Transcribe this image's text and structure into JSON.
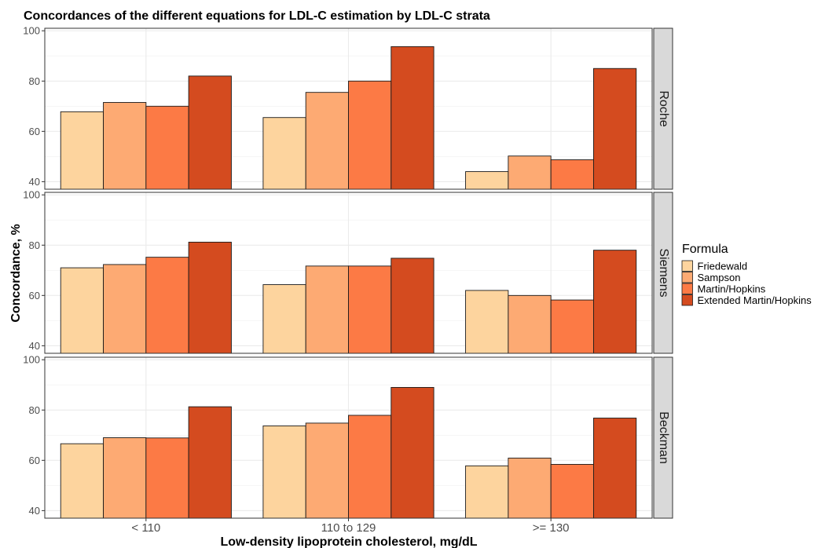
{
  "chart_data": {
    "type": "bar",
    "title": "Concordances of the different equations for LDL-C estimation by LDL-C strata",
    "xlabel": "Low-density lipoprotein cholesterol, mg/dL",
    "ylabel": "Concordance, %",
    "ylim": [
      37,
      101
    ],
    "yticks": [
      40,
      60,
      80,
      100
    ],
    "grid": true,
    "legend_position": "right",
    "legend_title": "Formula",
    "categories": [
      "< 110",
      "110 to 129",
      ">= 130"
    ],
    "series_names": [
      "Friedewald",
      "Sampson",
      "Martin/Hopkins",
      "Extended Martin/Hopkins"
    ],
    "colors": [
      "#fdd49e",
      "#fdaa73",
      "#fc7a45",
      "#d44b1f"
    ],
    "panels": [
      {
        "name": "Roche",
        "series": [
          {
            "name": "Friedewald",
            "values": [
              67.8,
              65.5,
              44.0
            ]
          },
          {
            "name": "Sampson",
            "values": [
              71.5,
              75.5,
              50.2
            ]
          },
          {
            "name": "Martin/Hopkins",
            "values": [
              70.0,
              80.0,
              48.7
            ]
          },
          {
            "name": "Extended Martin/Hopkins",
            "values": [
              82.0,
              93.7,
              85.0
            ]
          }
        ]
      },
      {
        "name": "Siemens",
        "series": [
          {
            "name": "Friedewald",
            "values": [
              71.0,
              64.3,
              62.0
            ]
          },
          {
            "name": "Sampson",
            "values": [
              72.3,
              71.7,
              60.0
            ]
          },
          {
            "name": "Martin/Hopkins",
            "values": [
              75.2,
              71.7,
              58.2
            ]
          },
          {
            "name": "Extended Martin/Hopkins",
            "values": [
              81.2,
              74.8,
              78.0
            ]
          }
        ]
      },
      {
        "name": "Beckman",
        "series": [
          {
            "name": "Friedewald",
            "values": [
              66.6,
              73.7,
              57.8
            ]
          },
          {
            "name": "Sampson",
            "values": [
              69.0,
              74.8,
              60.9
            ]
          },
          {
            "name": "Martin/Hopkins",
            "values": [
              68.9,
              77.9,
              58.4
            ]
          },
          {
            "name": "Extended Martin/Hopkins",
            "values": [
              81.3,
              89.0,
              76.8
            ]
          }
        ]
      }
    ]
  }
}
